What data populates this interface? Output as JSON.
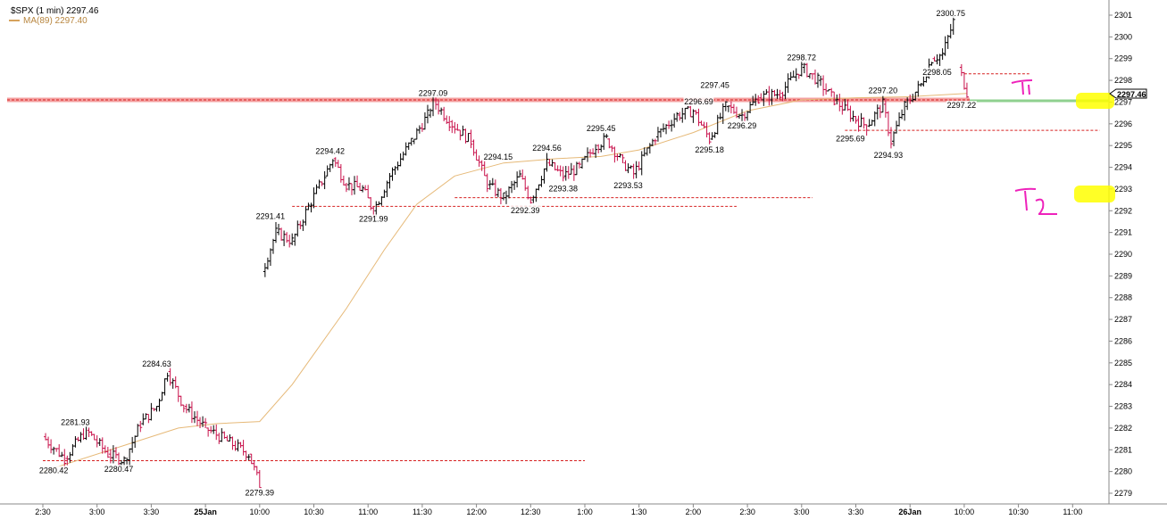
{
  "chart_data": {
    "type": "candlestick",
    "title": "$SPX (1 min) 2297.46",
    "ma_label": "MA(89) 2297.40",
    "last_price": "2297.46",
    "ylim": [
      2278.5,
      2301.6
    ],
    "y_ticks": [
      2279,
      2280,
      2281,
      2282,
      2283,
      2284,
      2285,
      2286,
      2287,
      2288,
      2289,
      2290,
      2291,
      2292,
      2293,
      2294,
      2295,
      2296,
      2297,
      2298,
      2299,
      2300,
      2301
    ],
    "x_ticks": [
      "2:30",
      "3:00",
      "3:30",
      "25Jan",
      "10:00",
      "10:30",
      "11:00",
      "11:30",
      "12:00",
      "12:30",
      "1:00",
      "1:30",
      "2:00",
      "2:30",
      "3:00",
      "3:30",
      "26Jan",
      "10:00",
      "10:30",
      "11:00"
    ],
    "price_labels": [
      {
        "text": "2281.93",
        "t": 0.6,
        "v": 2281.93
      },
      {
        "text": "2280.42",
        "t": 0.2,
        "v": 2280.42
      },
      {
        "text": "2280.47",
        "t": 1.4,
        "v": 2280.47
      },
      {
        "text": "2284.63",
        "t": 2.1,
        "v": 2284.63
      },
      {
        "text": "2279.39",
        "t": 4.0,
        "v": 2279.39
      },
      {
        "text": "2291.41",
        "t": 4.2,
        "v": 2291.41
      },
      {
        "text": "2294.42",
        "t": 5.3,
        "v": 2294.42
      },
      {
        "text": "2291.99",
        "t": 6.1,
        "v": 2291.99
      },
      {
        "text": "2297.09",
        "t": 7.2,
        "v": 2297.09
      },
      {
        "text": "2294.15",
        "t": 8.4,
        "v": 2294.15
      },
      {
        "text": "2292.39",
        "t": 8.9,
        "v": 2292.39
      },
      {
        "text": "2294.56",
        "t": 9.3,
        "v": 2294.56
      },
      {
        "text": "2293.38",
        "t": 9.6,
        "v": 2293.38
      },
      {
        "text": "2295.45",
        "t": 10.3,
        "v": 2295.45
      },
      {
        "text": "2293.53",
        "t": 10.8,
        "v": 2293.53
      },
      {
        "text": "2297.45",
        "t": 12.4,
        "v": 2297.45
      },
      {
        "text": "2296.69",
        "t": 12.1,
        "v": 2296.69
      },
      {
        "text": "2296.29",
        "t": 12.9,
        "v": 2296.29
      },
      {
        "text": "2295.18",
        "t": 12.3,
        "v": 2295.18
      },
      {
        "text": "2298.72",
        "t": 14.0,
        "v": 2298.72
      },
      {
        "text": "2297.20",
        "t": 15.5,
        "v": 2297.2
      },
      {
        "text": "2295.69",
        "t": 14.9,
        "v": 2295.69
      },
      {
        "text": "2294.93",
        "t": 15.6,
        "v": 2294.93
      },
      {
        "text": "2300.75",
        "t": 16.75,
        "v": 2300.75
      },
      {
        "text": "2298.05",
        "t": 16.5,
        "v": 2298.05
      },
      {
        "text": "2297.22",
        "t": 16.95,
        "v": 2297.22
      }
    ],
    "ohlc_path": [
      [
        0.0,
        2281.6
      ],
      [
        0.4,
        2280.6
      ],
      [
        0.8,
        2281.9
      ],
      [
        1.2,
        2280.8
      ],
      [
        1.5,
        2280.5
      ],
      [
        1.8,
        2282.2
      ],
      [
        2.1,
        2283.0
      ],
      [
        2.3,
        2284.6
      ],
      [
        2.6,
        2283.0
      ],
      [
        3.0,
        2282.0
      ],
      [
        3.4,
        2281.4
      ],
      [
        3.8,
        2280.8
      ],
      [
        4.0,
        2279.4
      ],
      [
        4.05,
        2289.2
      ],
      [
        4.3,
        2291.0
      ],
      [
        4.6,
        2290.6
      ],
      [
        4.9,
        2292.2
      ],
      [
        5.2,
        2293.6
      ],
      [
        5.35,
        2294.4
      ],
      [
        5.6,
        2293.2
      ],
      [
        5.9,
        2293.0
      ],
      [
        6.1,
        2292.0
      ],
      [
        6.4,
        2293.6
      ],
      [
        6.8,
        2295.2
      ],
      [
        7.1,
        2296.4
      ],
      [
        7.2,
        2297.1
      ],
      [
        7.5,
        2296.1
      ],
      [
        7.9,
        2295.2
      ],
      [
        8.2,
        2293.2
      ],
      [
        8.5,
        2292.6
      ],
      [
        8.8,
        2293.6
      ],
      [
        9.0,
        2292.5
      ],
      [
        9.3,
        2294.2
      ],
      [
        9.6,
        2293.6
      ],
      [
        9.9,
        2294.0
      ],
      [
        10.2,
        2295.0
      ],
      [
        10.4,
        2295.3
      ],
      [
        10.7,
        2294.2
      ],
      [
        10.9,
        2293.7
      ],
      [
        11.3,
        2295.4
      ],
      [
        11.7,
        2296.4
      ],
      [
        12.0,
        2296.6
      ],
      [
        12.3,
        2295.3
      ],
      [
        12.6,
        2296.8
      ],
      [
        12.9,
        2296.4
      ],
      [
        13.2,
        2297.2
      ],
      [
        13.6,
        2297.4
      ],
      [
        14.0,
        2298.6
      ],
      [
        14.3,
        2298.0
      ],
      [
        14.6,
        2297.1
      ],
      [
        15.0,
        2296.2
      ],
      [
        15.2,
        2295.9
      ],
      [
        15.5,
        2296.9
      ],
      [
        15.65,
        2295.2
      ],
      [
        15.9,
        2296.8
      ],
      [
        16.2,
        2297.8
      ],
      [
        16.4,
        2299.0
      ],
      [
        16.6,
        2299.2
      ],
      [
        16.8,
        2300.7
      ],
      [
        16.9,
        2298.6
      ],
      [
        17.05,
        2297.46
      ]
    ],
    "ma_path": [
      [
        0.0,
        2280.0
      ],
      [
        1.5,
        2281.2
      ],
      [
        2.5,
        2282.0
      ],
      [
        3.2,
        2282.2
      ],
      [
        4.0,
        2282.3
      ],
      [
        4.6,
        2284.0
      ],
      [
        5.6,
        2287.5
      ],
      [
        6.3,
        2290.2
      ],
      [
        6.9,
        2292.3
      ],
      [
        7.6,
        2293.6
      ],
      [
        8.5,
        2294.2
      ],
      [
        9.5,
        2294.4
      ],
      [
        10.3,
        2294.5
      ],
      [
        11.0,
        2294.8
      ],
      [
        12.0,
        2295.6
      ],
      [
        13.0,
        2296.6
      ],
      [
        14.0,
        2297.1
      ],
      [
        15.0,
        2297.2
      ],
      [
        16.0,
        2297.25
      ],
      [
        17.05,
        2297.4
      ]
    ],
    "resistance_lines": [
      {
        "v": 2297.1,
        "t0": 0.0,
        "t1": 17.1,
        "style": "solid-band"
      },
      {
        "v": 2298.3,
        "t0": 17.0,
        "t1": 18.2,
        "style": "dashed"
      },
      {
        "v": 2295.7,
        "t0": 14.8,
        "t1": 19.5,
        "style": "dashed"
      },
      {
        "v": 2292.6,
        "t0": 7.6,
        "t1": 14.2,
        "style": "dashed"
      },
      {
        "v": 2292.2,
        "t0": 4.6,
        "t1": 12.8,
        "style": "dashed"
      },
      {
        "v": 2280.5,
        "t0": 0.0,
        "t1": 10.0,
        "style": "dashed"
      }
    ],
    "target_labels": [
      "T1",
      "T2"
    ],
    "highlight_levels": [
      2297,
      2293
    ]
  }
}
